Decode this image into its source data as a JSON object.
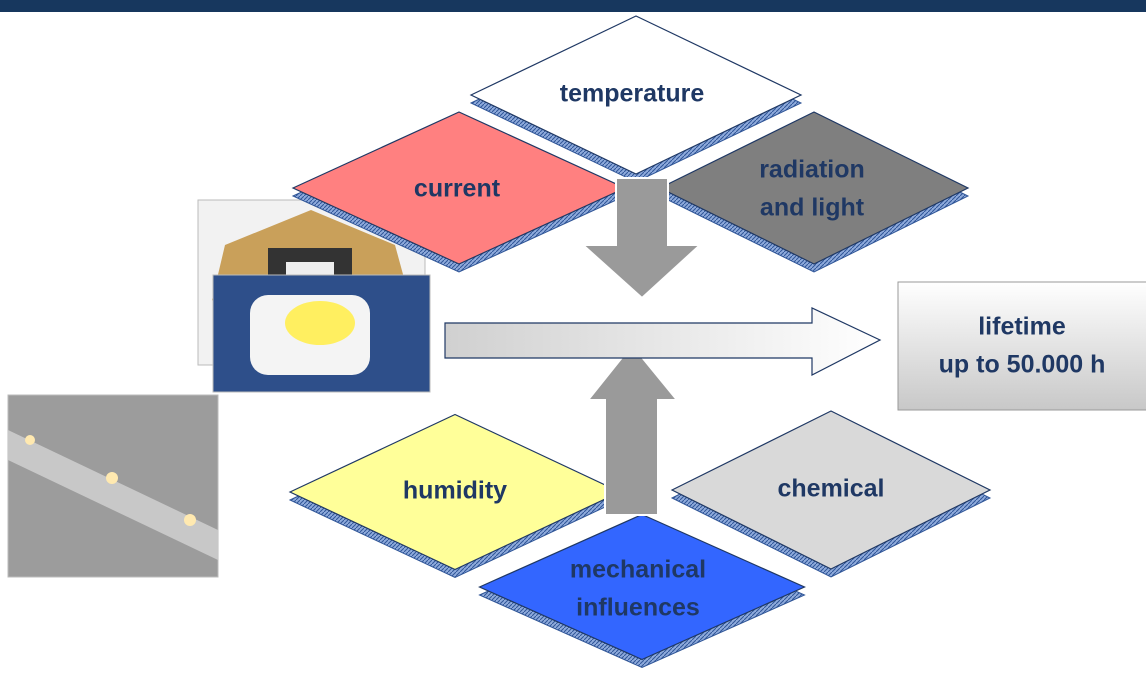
{
  "factors": [
    {
      "lines": [
        "temperature"
      ]
    },
    {
      "lines": [
        "current"
      ]
    },
    {
      "lines": [
        "radiation",
        "and light"
      ]
    },
    {
      "lines": [
        "humidity"
      ]
    },
    {
      "lines": [
        "chemical"
      ]
    },
    {
      "lines": [
        "mechanical",
        "influences"
      ]
    }
  ],
  "result": {
    "lines": [
      "lifetime",
      "up to 50.000 h"
    ]
  }
}
